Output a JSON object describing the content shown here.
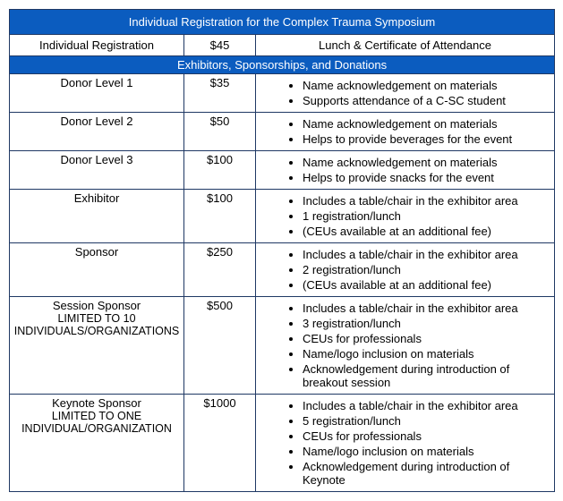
{
  "header1": "Individual Registration for the Complex Trauma Symposium",
  "individual": {
    "label": "Individual Registration",
    "price": "$45",
    "desc": "Lunch & Certificate of Attendance"
  },
  "header2": "Exhibitors, Sponsorships, and Donations",
  "tiers": [
    {
      "name": "Donor Level 1",
      "price": "$35",
      "benefits": [
        "Name acknowledgement on materials",
        "Supports attendance of a C-SC student"
      ]
    },
    {
      "name": "Donor Level 2",
      "price": "$50",
      "benefits": [
        "Name acknowledgement on materials",
        "Helps to provide beverages for the event"
      ]
    },
    {
      "name": "Donor Level 3",
      "price": "$100",
      "benefits": [
        "Name acknowledgement on materials",
        "Helps to provide snacks for the event"
      ]
    },
    {
      "name": "Exhibitor",
      "price": "$100",
      "benefits": [
        "Includes a table/chair in the exhibitor area",
        "1 registration/lunch",
        "(CEUs available at an additional fee)"
      ]
    },
    {
      "name": "Sponsor",
      "price": "$250",
      "benefits": [
        "Includes a table/chair in the exhibitor area",
        "2 registration/lunch",
        "(CEUs available at an additional fee)"
      ]
    },
    {
      "name": "Session Sponsor",
      "sub1": "LIMITED TO 10",
      "sub2": "INDIVIDUALS/ORGANIZATIONS",
      "price": "$500",
      "benefits": [
        "Includes a table/chair in the exhibitor area",
        "3 registration/lunch",
        "CEUs for professionals",
        "Name/logo inclusion on materials",
        "Acknowledgement during introduction of breakout session"
      ]
    },
    {
      "name": "Keynote Sponsor",
      "sub1": "LIMITED TO ONE",
      "sub2": "INDIVIDUAL/ORGANIZATION",
      "price": "$1000",
      "benefits": [
        "Includes a table/chair in the exhibitor area",
        "5 registration/lunch",
        "CEUs for professionals",
        "Name/logo inclusion on materials",
        "Acknowledgement during introduction of Keynote"
      ]
    }
  ]
}
